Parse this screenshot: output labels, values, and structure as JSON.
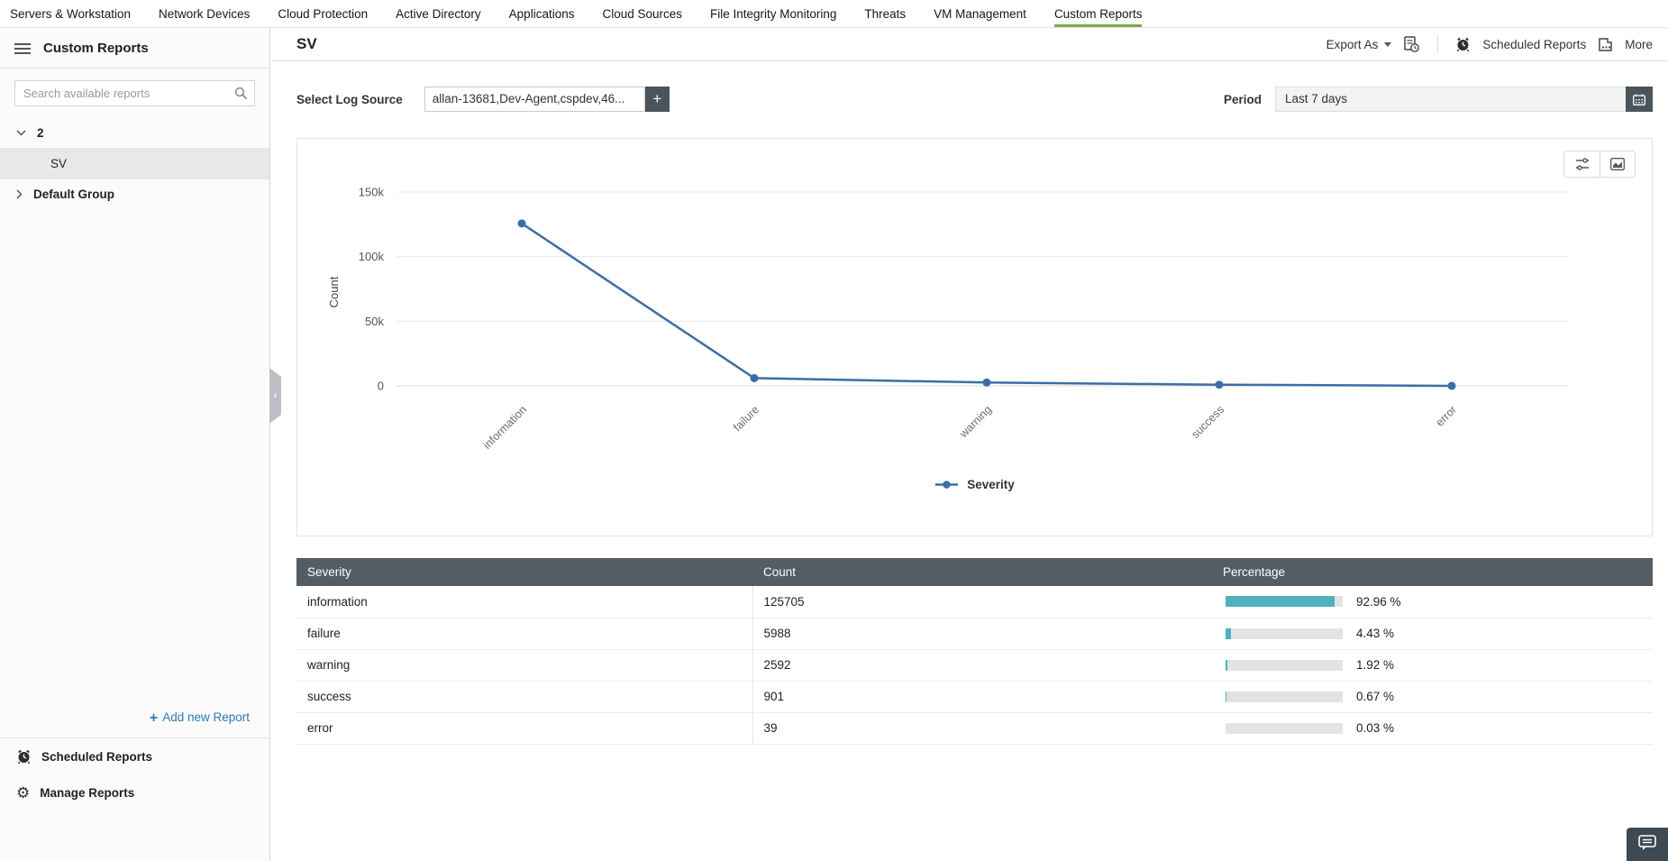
{
  "nav": {
    "items": [
      {
        "label": "Servers & Workstation",
        "active": false
      },
      {
        "label": "Network Devices",
        "active": false
      },
      {
        "label": "Cloud Protection",
        "active": false
      },
      {
        "label": "Active Directory",
        "active": false
      },
      {
        "label": "Applications",
        "active": false
      },
      {
        "label": "Cloud Sources",
        "active": false
      },
      {
        "label": "File Integrity Monitoring",
        "active": false
      },
      {
        "label": "Threats",
        "active": false
      },
      {
        "label": "VM Management",
        "active": false
      },
      {
        "label": "Custom Reports",
        "active": true
      }
    ]
  },
  "sidebar": {
    "title": "Custom Reports",
    "search_placeholder": "Search available reports",
    "tree": {
      "group1": "2",
      "leaf1": "SV",
      "group2": "Default Group"
    },
    "add_report": "Add new Report",
    "scheduled_reports": "Scheduled Reports",
    "manage_reports": "Manage Reports"
  },
  "header": {
    "title": "SV",
    "export_as": "Export As",
    "scheduled_reports": "Scheduled Reports",
    "more": "More"
  },
  "filters": {
    "log_source_label": "Select Log Source",
    "log_source_value": "allan-13681,Dev-Agent,cspdev,46...",
    "period_label": "Period",
    "period_value": "Last 7 days"
  },
  "chart_data": {
    "type": "line",
    "categories": [
      "information",
      "failure",
      "warning",
      "success",
      "error"
    ],
    "series": [
      {
        "name": "Severity",
        "values": [
          125705,
          5988,
          2592,
          901,
          39
        ]
      }
    ],
    "xlabel": "",
    "ylabel": "Count",
    "ylim": [
      0,
      150000
    ],
    "yticks": [
      {
        "value": 0,
        "label": "0"
      },
      {
        "value": 50000,
        "label": "50k"
      },
      {
        "value": 100000,
        "label": "100k"
      },
      {
        "value": 150000,
        "label": "150k"
      }
    ],
    "grid": true,
    "legend_position": "bottom",
    "line_color": "#3b6ea5"
  },
  "table": {
    "columns": [
      "Severity",
      "Count",
      "Percentage"
    ],
    "rows": [
      {
        "severity": "information",
        "count": "125705",
        "percent": 92.96,
        "percent_label": "92.96 %"
      },
      {
        "severity": "failure",
        "count": "5988",
        "percent": 4.43,
        "percent_label": "4.43 %"
      },
      {
        "severity": "warning",
        "count": "2592",
        "percent": 1.92,
        "percent_label": "1.92 %"
      },
      {
        "severity": "success",
        "count": "901",
        "percent": 0.67,
        "percent_label": "0.67 %"
      },
      {
        "severity": "error",
        "count": "39",
        "percent": 0.03,
        "percent_label": "0.03 %"
      }
    ]
  },
  "colors": {
    "accent_green": "#7aa74e",
    "link_blue": "#2a7ab5",
    "line_blue": "#3b6ea5",
    "bar_teal": "#4fb1bd",
    "table_header_bg": "#545d63",
    "dark_button_bg": "#4a545a"
  }
}
